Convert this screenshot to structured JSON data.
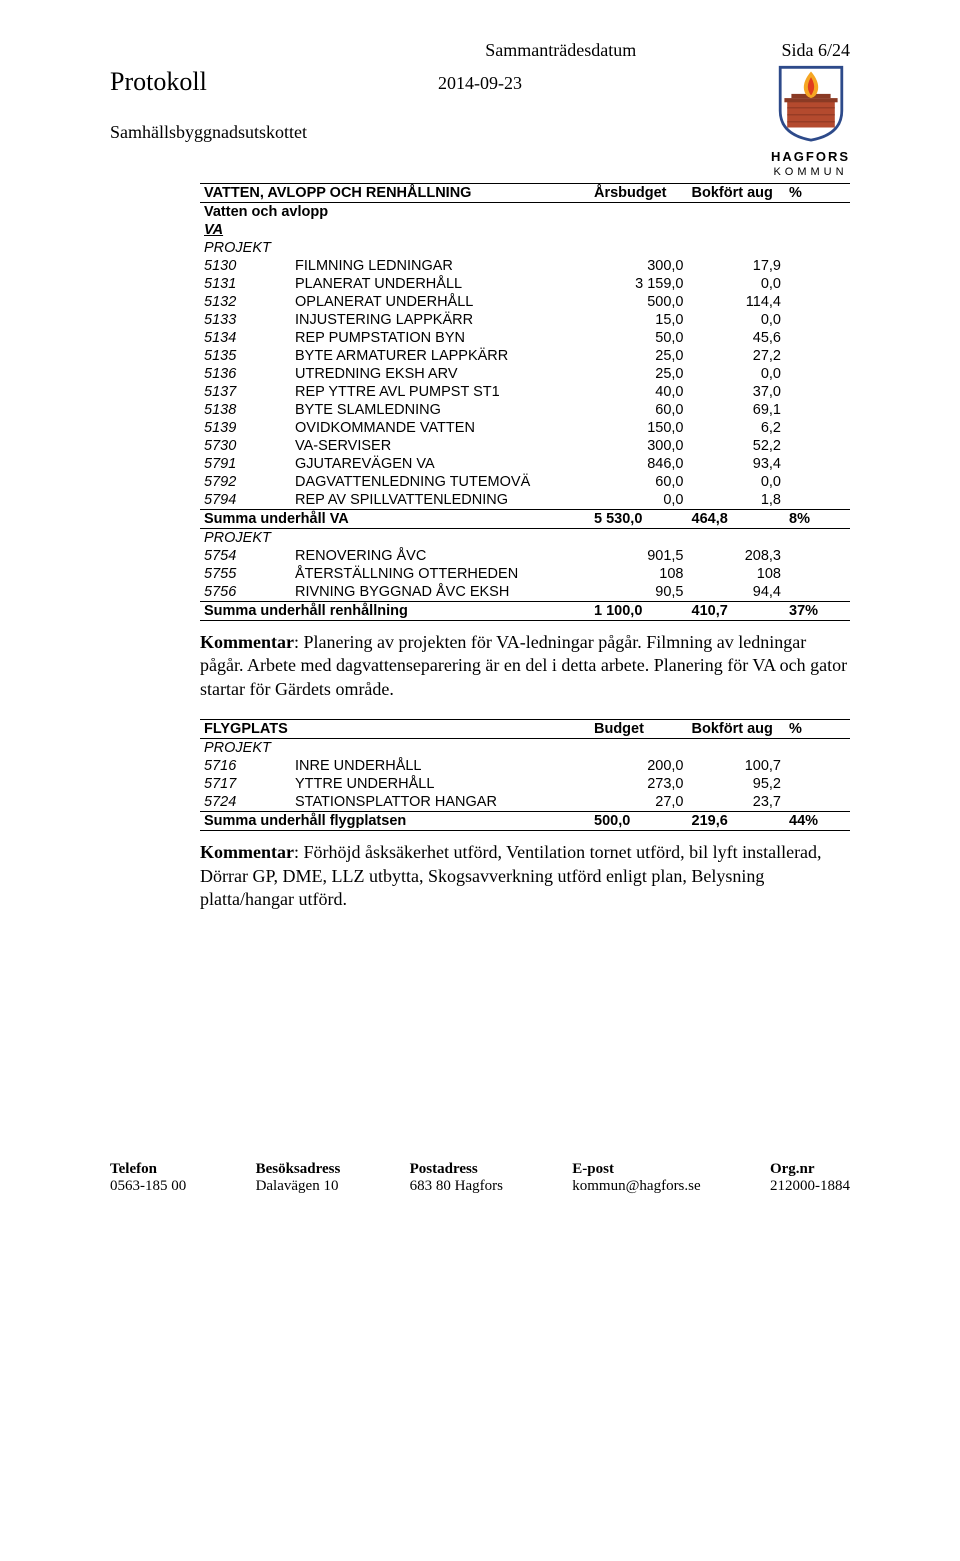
{
  "header": {
    "left_meta": "Sammanträdesdatum",
    "right_meta": "Sida 6/24",
    "protokoll": "Protokoll",
    "date": "2014-09-23",
    "subtitle": "Samhällsbyggnadsutskottet",
    "logo_top": "HAGFORS",
    "logo_bottom": "KOMMUN"
  },
  "table1": {
    "title": "VATTEN, AVLOPP OCH RENHÅLLNING",
    "col_budget": "Årsbudget",
    "col_bokfort": "Bokfört aug",
    "col_pct": "%",
    "sub1": "Vatten och avlopp",
    "sub2": "VA",
    "sub3": "PROJEKT",
    "rows_a": [
      {
        "code": "5130",
        "desc": "FILMNING LEDNINGAR",
        "v1": "300,0",
        "v2": "17,9"
      },
      {
        "code": "5131",
        "desc": "PLANERAT UNDERHÅLL",
        "v1": "3 159,0",
        "v2": "0,0"
      },
      {
        "code": "5132",
        "desc": "OPLANERAT UNDERHÅLL",
        "v1": "500,0",
        "v2": "114,4"
      },
      {
        "code": "5133",
        "desc": "INJUSTERING LAPPKÄRR",
        "v1": "15,0",
        "v2": "0,0"
      },
      {
        "code": "5134",
        "desc": "REP PUMPSTATION BYN",
        "v1": "50,0",
        "v2": "45,6"
      },
      {
        "code": "5135",
        "desc": "BYTE ARMATURER LAPPKÄRR",
        "v1": "25,0",
        "v2": "27,2"
      },
      {
        "code": "5136",
        "desc": "UTREDNING EKSH ARV",
        "v1": "25,0",
        "v2": "0,0"
      },
      {
        "code": "5137",
        "desc": "REP YTTRE AVL PUMPST ST1",
        "v1": "40,0",
        "v2": "37,0"
      },
      {
        "code": "5138",
        "desc": "BYTE SLAMLEDNING",
        "v1": "60,0",
        "v2": "69,1"
      },
      {
        "code": "5139",
        "desc": "OVIDKOMMANDE VATTEN",
        "v1": "150,0",
        "v2": "6,2"
      },
      {
        "code": "5730",
        "desc": "VA-SERVISER",
        "v1": "300,0",
        "v2": "52,2"
      },
      {
        "code": "5791",
        "desc": "GJUTAREVÄGEN VA",
        "v1": "846,0",
        "v2": "93,4"
      },
      {
        "code": "5792",
        "desc": "DAGVATTENLEDNING TUTEMOVÄ",
        "v1": "60,0",
        "v2": "0,0"
      },
      {
        "code": "5794",
        "desc": "REP AV SPILLVATTENLEDNING",
        "v1": "0,0",
        "v2": "1,8"
      }
    ],
    "sum_a": {
      "label": "Summa underhåll VA",
      "v1": "5 530,0",
      "v2": "464,8",
      "pct": "8%"
    },
    "sub4": "PROJEKT",
    "rows_b": [
      {
        "code": "5754",
        "desc": "RENOVERING ÅVC",
        "v1": "901,5",
        "v2": "208,3"
      },
      {
        "code": "5755",
        "desc": "ÅTERSTÄLLNING OTTERHEDEN",
        "v1": "108",
        "v2": "108"
      },
      {
        "code": "5756",
        "desc": "RIVNING BYGGNAD ÅVC EKSH",
        "v1": "90,5",
        "v2": "94,4"
      }
    ],
    "sum_b": {
      "label": "Summa underhåll renhållning",
      "v1": "1 100,0",
      "v2": "410,7",
      "pct": "37%"
    }
  },
  "comment1_label": "Kommentar",
  "comment1_text": ": Planering av projekten för VA-ledningar pågår. Filmning av ledningar pågår. Arbete med dagvattenseparering är en del i detta arbete. Planering för VA och gator startar för Gärdets område.",
  "table2": {
    "title": "FLYGPLATS",
    "col_budget": "Budget",
    "col_bokfort": "Bokfört aug",
    "col_pct": "%",
    "sub1": "PROJEKT",
    "rows": [
      {
        "code": "5716",
        "desc": "INRE UNDERHÅLL",
        "v1": "200,0",
        "v2": "100,7"
      },
      {
        "code": "5717",
        "desc": "YTTRE UNDERHÅLL",
        "v1": "273,0",
        "v2": "95,2"
      },
      {
        "code": "5724",
        "desc": "STATIONSPLATTOR HANGAR",
        "v1": "27,0",
        "v2": "23,7"
      }
    ],
    "sum": {
      "label": "Summa underhåll flygplatsen",
      "v1": "500,0",
      "v2": "219,6",
      "pct": "44%"
    }
  },
  "comment2_label": "Kommentar",
  "comment2_text": ": Förhöjd åsksäkerhet utförd, Ventilation tornet utförd, bil lyft installerad, Dörrar GP, DME, LLZ utbytta, Skogsavverkning utförd enligt plan, Belysning platta/hangar utförd.",
  "footer": {
    "c1_label": "Telefon",
    "c1_val": "0563-185 00",
    "c2_label": "Besöksadress",
    "c2_val": "Dalavägen 10",
    "c3_label": "Postadress",
    "c3_val": "683 80 Hagfors",
    "c4_label": "E-post",
    "c4_val": "kommun@hagfors.se",
    "c5_label": "Org.nr",
    "c5_val": "212000-1884"
  },
  "logo_colors": {
    "shield_border": "#2d4a8a",
    "shield_fill": "#ffffff",
    "brick": "#b44a2e",
    "flame_outer": "#f5a623",
    "flame_inner": "#e03c1f"
  }
}
